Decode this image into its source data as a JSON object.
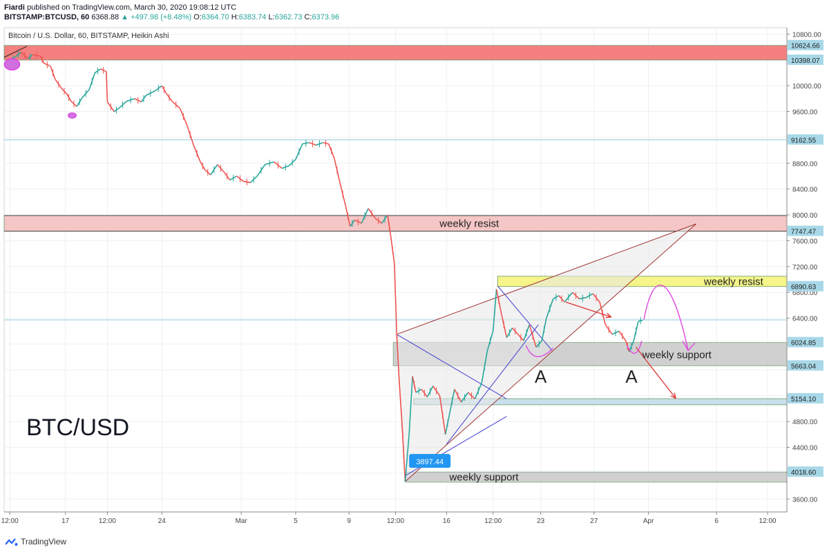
{
  "header": {
    "publisher": "Fiardi",
    "published_text": "published on TradingView.com, March 30, 2020 19:08:12 UTC",
    "symbol": "BITSTAMP:BTCUSD, 60",
    "last": "6368.88",
    "up_arrow": "▲",
    "change": "+497.98 (+8.48%)",
    "o_label": "O:",
    "o_value": "6364.70",
    "h_label": "H:",
    "h_value": "6383.74",
    "l_label": "L:",
    "l_value": "6362.73",
    "c_label": "C:",
    "c_value": "6373.96"
  },
  "chart_title": "Bitcoin / U.S. Dollar, 60, BITSTAMP, Heikin Ashi",
  "pair_label": "BTC/USD",
  "footer": {
    "brand": "TradingView",
    "logo_icon": "tradingview-logo-icon"
  },
  "colors": {
    "up": "#26a69a",
    "down": "#ef5350",
    "resist_zone": "#f48080",
    "resist_zone_light": "#f5c6c6",
    "support_zone": "#c8c8c8",
    "yellow_zone": "#f5f58a",
    "blue_zone": "#c9e0ec",
    "hline": "#8fcde0",
    "wedge": "#a03030",
    "trend_blue": "#3f3fd0",
    "magenta": "#e040e0",
    "red_arrow": "#e03030"
  },
  "chart_data": {
    "type": "line",
    "title": "Bitcoin / U.S. Dollar, 60, BITSTAMP, Heikin Ashi",
    "ylim": [
      3400,
      10900
    ],
    "y_ticks": [
      3600,
      4000,
      4400,
      4800,
      5200,
      5600,
      6000,
      6400,
      6800,
      7200,
      7600,
      8000,
      8400,
      8800,
      9200,
      9600,
      10000,
      10400,
      10800
    ],
    "y_tick_labels": [
      "3600.00",
      "",
      "4400.00",
      "4800.00",
      "",
      "",
      "",
      "6400.00",
      "6800.00",
      "7200.00",
      "7600.00",
      "8000.00",
      "8400.00",
      "8800.00",
      "",
      "9600.00",
      "10000.00",
      "",
      "10800.00"
    ],
    "x_ticks": [
      {
        "label": "12:00",
        "t": 0.0
      },
      {
        "label": "17",
        "t": 4.9
      },
      {
        "label": "12:00",
        "t": 8.6
      },
      {
        "label": "24",
        "t": 13.4
      },
      {
        "label": "Mar",
        "t": 20.4
      },
      {
        "label": "5",
        "t": 25.2
      },
      {
        "label": "9",
        "t": 29.9
      },
      {
        "label": "12:00",
        "t": 34.0
      },
      {
        "label": "16",
        "t": 38.5
      },
      {
        "label": "12:00",
        "t": 42.6
      },
      {
        "label": "23",
        "t": 46.8
      },
      {
        "label": "27",
        "t": 51.5
      },
      {
        "label": "Apr",
        "t": 56.3
      },
      {
        "label": "6",
        "t": 62.3
      },
      {
        "label": "12:00",
        "t": 66.8
      }
    ],
    "xlim": [
      -0.5,
      68.5
    ],
    "price_labels": [
      {
        "value": 10624.66,
        "text": "10624.66"
      },
      {
        "value": 10398.07,
        "text": "10398.07"
      },
      {
        "value": 9162.55,
        "text": "9162.55"
      },
      {
        "value": 7747.47,
        "text": "7747.47"
      },
      {
        "value": 6890.63,
        "text": "6890.63"
      },
      {
        "value": 6024.85,
        "text": "6024.85"
      },
      {
        "value": 5663.04,
        "text": "5663.04"
      },
      {
        "value": 5154.1,
        "text": "5154.10"
      },
      {
        "value": 4018.6,
        "text": "4018.60"
      }
    ],
    "price_path": [
      [
        0,
        10380
      ],
      [
        0.5,
        10450
      ],
      [
        1,
        10520
      ],
      [
        1.6,
        10420
      ],
      [
        2,
        10480
      ],
      [
        2.7,
        10460
      ],
      [
        3,
        10350
      ],
      [
        3.6,
        10300
      ],
      [
        4,
        10100
      ],
      [
        4.6,
        9950
      ],
      [
        5,
        9880
      ],
      [
        5.4,
        9760
      ],
      [
        5.9,
        9680
      ],
      [
        6.4,
        9820
      ],
      [
        7,
        9940
      ],
      [
        7.5,
        10200
      ],
      [
        8,
        10260
      ],
      [
        8.5,
        10220
      ],
      [
        8.6,
        9750
      ],
      [
        9.2,
        9600
      ],
      [
        9.6,
        9650
      ],
      [
        10.3,
        9760
      ],
      [
        11,
        9800
      ],
      [
        11.6,
        9750
      ],
      [
        12,
        9850
      ],
      [
        12.8,
        9920
      ],
      [
        13.4,
        10000
      ],
      [
        13.8,
        9880
      ],
      [
        14.3,
        9760
      ],
      [
        15,
        9650
      ],
      [
        15.6,
        9400
      ],
      [
        16.2,
        9080
      ],
      [
        16.8,
        8820
      ],
      [
        17.2,
        8700
      ],
      [
        17.7,
        8620
      ],
      [
        18.3,
        8780
      ],
      [
        18.9,
        8660
      ],
      [
        19.4,
        8540
      ],
      [
        20,
        8600
      ],
      [
        20.6,
        8520
      ],
      [
        21.2,
        8500
      ],
      [
        21.8,
        8600
      ],
      [
        22.5,
        8780
      ],
      [
        23.3,
        8820
      ],
      [
        24,
        8720
      ],
      [
        24.6,
        8760
      ],
      [
        25.2,
        8860
      ],
      [
        25.8,
        9100
      ],
      [
        26.4,
        9120
      ],
      [
        27,
        9080
      ],
      [
        27.6,
        9120
      ],
      [
        28.1,
        9100
      ],
      [
        28.6,
        8880
      ],
      [
        29.1,
        8500
      ],
      [
        29.6,
        8140
      ],
      [
        30,
        7820
      ],
      [
        30.4,
        7920
      ],
      [
        31,
        7870
      ],
      [
        31.6,
        8100
      ],
      [
        32.2,
        7950
      ],
      [
        32.8,
        7870
      ],
      [
        33.3,
        8000
      ],
      [
        33.6,
        7650
      ],
      [
        33.9,
        7250
      ],
      [
        34.1,
        6200
      ],
      [
        34.3,
        5500
      ],
      [
        34.6,
        4700
      ],
      [
        34.85,
        3870
      ],
      [
        35.2,
        4600
      ],
      [
        35.5,
        5500
      ],
      [
        35.8,
        5250
      ],
      [
        36.3,
        5300
      ],
      [
        36.8,
        5180
      ],
      [
        37.3,
        5350
      ],
      [
        37.9,
        5200
      ],
      [
        38.4,
        4600
      ],
      [
        38.8,
        4950
      ],
      [
        39.2,
        5300
      ],
      [
        39.8,
        5100
      ],
      [
        40.4,
        5250
      ],
      [
        41,
        5150
      ],
      [
        41.6,
        5400
      ],
      [
        42.1,
        5900
      ],
      [
        42.6,
        6200
      ],
      [
        42.9,
        6850
      ],
      [
        43.3,
        6500
      ],
      [
        43.8,
        6100
      ],
      [
        44.3,
        6250
      ],
      [
        44.8,
        6150
      ],
      [
        45.3,
        6050
      ],
      [
        45.8,
        6300
      ],
      [
        46.4,
        5950
      ],
      [
        46.9,
        6050
      ],
      [
        47.3,
        6400
      ],
      [
        47.9,
        6700
      ],
      [
        48.4,
        6750
      ],
      [
        48.9,
        6650
      ],
      [
        49.6,
        6800
      ],
      [
        50.2,
        6700
      ],
      [
        50.8,
        6720
      ],
      [
        51.4,
        6780
      ],
      [
        52,
        6650
      ],
      [
        52.5,
        6300
      ],
      [
        53.1,
        6150
      ],
      [
        53.7,
        6200
      ],
      [
        54.3,
        6050
      ],
      [
        54.6,
        5880
      ],
      [
        55,
        6050
      ],
      [
        55.4,
        6350
      ],
      [
        55.8,
        6370
      ]
    ],
    "zones": [
      {
        "t0": -0.5,
        "t1": 68.5,
        "lo": 10398.07,
        "hi": 10624.66,
        "color": "resist_zone",
        "opacity": 1
      },
      {
        "t0": -0.5,
        "t1": 68.5,
        "lo": 7747.47,
        "hi": 7990,
        "color": "resist_zone_light",
        "opacity": 1,
        "label": "weekly resist"
      },
      {
        "t0": 43,
        "t1": 68.5,
        "lo": 6890.63,
        "hi": 7050,
        "color": "yellow_zone",
        "opacity": 1,
        "label": "weekly resist"
      },
      {
        "t0": 33.8,
        "t1": 68.5,
        "lo": 5663.04,
        "hi": 6024.85,
        "color": "support_zone",
        "opacity": 0.85,
        "label": "weekly support"
      },
      {
        "t0": 35.6,
        "t1": 68.5,
        "lo": 5060,
        "hi": 5154.1,
        "color": "blue_zone",
        "opacity": 1
      },
      {
        "t0": 34.9,
        "t1": 68.5,
        "lo": 3860,
        "hi": 4018.6,
        "color": "support_zone",
        "opacity": 0.85,
        "label": "weekly support"
      }
    ],
    "hlines": [
      9162.55,
      6373.96
    ],
    "annotations": {
      "lowest_label": "3897.44",
      "a_marks": [
        "A",
        "A"
      ]
    }
  }
}
